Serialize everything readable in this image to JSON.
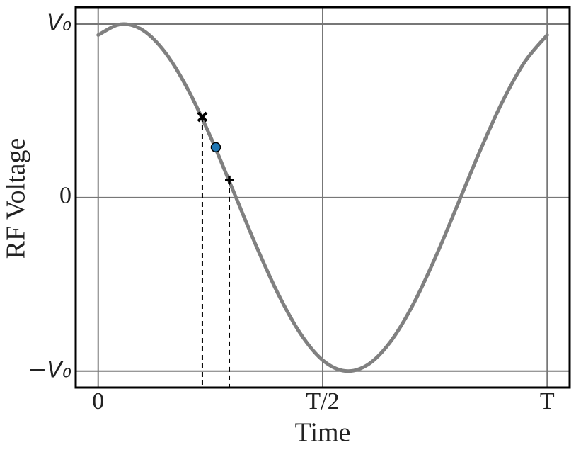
{
  "chart_data": {
    "type": "line",
    "x_label": "Time",
    "y_label": "RF Voltage",
    "x": [
      0,
      0.05,
      0.1,
      0.15,
      0.2,
      0.25,
      0.3,
      0.35,
      0.4,
      0.45,
      0.5,
      0.55,
      0.6,
      0.65,
      0.7,
      0.75,
      0.8,
      0.85,
      0.9,
      0.95,
      1
    ],
    "series": [
      {
        "color": "#808080",
        "values": [
          0.937,
          0.999,
          0.964,
          0.834,
          0.623,
          0.351,
          0.044,
          -0.267,
          -0.551,
          -0.782,
          -0.937,
          -0.999,
          -0.964,
          -0.834,
          -0.623,
          -0.351,
          -0.044,
          0.267,
          0.551,
          0.782,
          0.937
        ]
      }
    ],
    "markers": [
      {
        "x": 0.232,
        "y": 0.465,
        "marker": "x",
        "color": "#000000",
        "dashed_drop": true
      },
      {
        "x": 0.262,
        "y": 0.29,
        "marker": "circle",
        "color": "#1f77b4",
        "dashed_drop": false
      },
      {
        "x": 0.292,
        "y": 0.102,
        "marker": "plus",
        "color": "#000000",
        "dashed_drop": true
      }
    ],
    "xlim": [
      -0.05,
      1.05
    ],
    "ylim": [
      -1.095,
      1.098
    ],
    "xticks": [
      {
        "value": 0,
        "label": "0"
      },
      {
        "value": 0.5,
        "label": "T/2"
      },
      {
        "value": 1,
        "label": "T"
      }
    ],
    "yticks": [
      {
        "value": -1,
        "label": "−V₀"
      },
      0,
      {
        "value": 1,
        "label": "V₀"
      }
    ],
    "grid": true,
    "grid_color": "#777777"
  }
}
